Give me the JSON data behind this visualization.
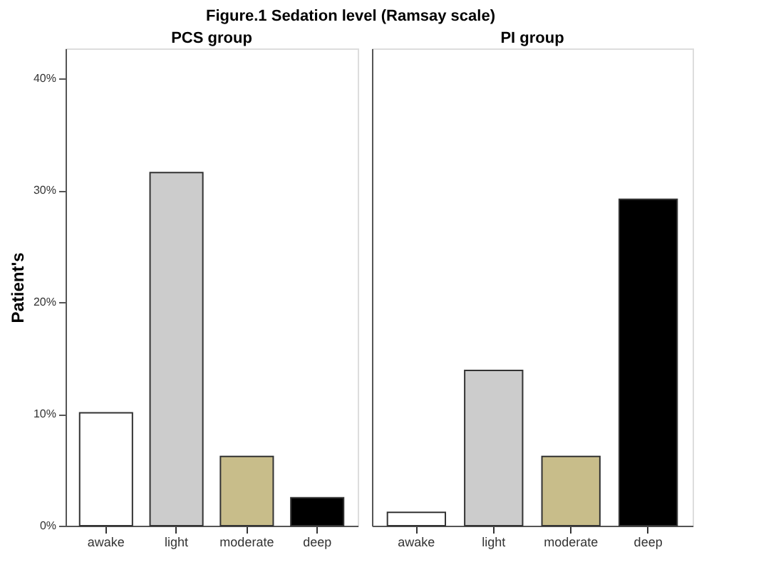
{
  "chart_data": [
    {
      "type": "bar",
      "title": "Figure.1  Sedation level (Ramsay scale)",
      "subtitle": "PCS group",
      "ylabel": "Patient's",
      "categories": [
        "awake",
        "light",
        "moderate",
        "deep"
      ],
      "values": [
        10.1,
        31.6,
        6.2,
        2.5
      ],
      "colors": [
        "#ffffff",
        "#cccccc",
        "#c8bd8a",
        "#000000"
      ],
      "ylim": [
        0,
        42.7
      ],
      "yticks": [
        {
          "value": 0,
          "label": "0%"
        },
        {
          "value": 10,
          "label": "10%"
        },
        {
          "value": 20,
          "label": "20%"
        },
        {
          "value": 30,
          "label": "30%"
        },
        {
          "value": 40,
          "label": "40%"
        }
      ],
      "grid": false
    },
    {
      "type": "bar",
      "subtitle": "PI group",
      "categories": [
        "awake",
        "light",
        "moderate",
        "deep"
      ],
      "values": [
        1.2,
        13.9,
        6.2,
        29.2
      ],
      "colors": [
        "#ffffff",
        "#cccccc",
        "#c8bd8a",
        "#000000"
      ],
      "ylim": [
        0,
        42.7
      ],
      "tick_labels": "x",
      "grid": false
    }
  ]
}
